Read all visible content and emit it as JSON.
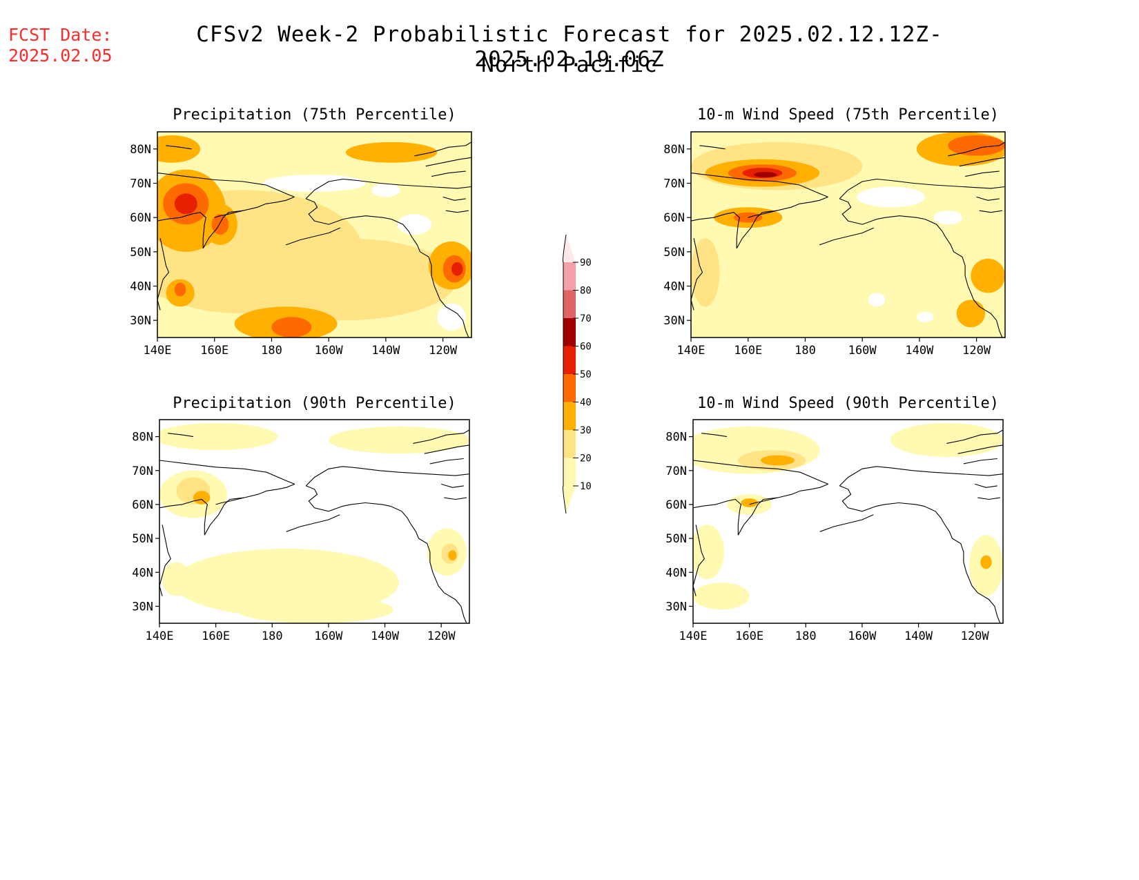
{
  "header": {
    "fcst_label": "FCST Date:",
    "fcst_date": "2025.02.05",
    "title": "CFSv2 Week-2 Probabilistic Forecast for 2025.02.12.12Z-2025.02.19.06Z",
    "region": "North Pacific"
  },
  "colors": {
    "levels": [
      "#ffffff",
      "#fff9b2",
      "#ffe385",
      "#ffb000",
      "#ff6a00",
      "#e62000",
      "#a00000",
      "#e06464",
      "#f4a0a8",
      "#ffe8ea"
    ],
    "coast": "#000000"
  },
  "legend": {
    "ticks": [
      "10",
      "20",
      "30",
      "40",
      "50",
      "60",
      "70",
      "80",
      "90"
    ]
  },
  "map_axes": {
    "lon_ticks": [
      "140E",
      "160E",
      "180",
      "160W",
      "140W",
      "120W"
    ],
    "lat_ticks": [
      "80N",
      "70N",
      "60N",
      "50N",
      "40N",
      "30N"
    ],
    "lon_range": [
      140,
      250
    ],
    "lat_range": [
      25,
      85
    ]
  },
  "panels": [
    {
      "title": "Precipitation (75th Percentile)",
      "blobs": [
        {
          "lon": 170,
          "lat": 50,
          "rx": 42,
          "ry": 18,
          "level": 2
        },
        {
          "lon": 205,
          "lat": 42,
          "rx": 40,
          "ry": 12,
          "level": 2
        },
        {
          "lon": 150,
          "lat": 62,
          "rx": 14,
          "ry": 12,
          "level": 3
        },
        {
          "lon": 150,
          "lat": 64,
          "rx": 8,
          "ry": 6,
          "level": 4
        },
        {
          "lon": 150,
          "lat": 64,
          "rx": 4,
          "ry": 3,
          "level": 5
        },
        {
          "lon": 162,
          "lat": 58,
          "rx": 6,
          "ry": 6,
          "level": 3
        },
        {
          "lon": 162,
          "lat": 58,
          "rx": 3,
          "ry": 3,
          "level": 4
        },
        {
          "lon": 145,
          "lat": 80,
          "rx": 10,
          "ry": 4,
          "level": 3
        },
        {
          "lon": 148,
          "lat": 38,
          "rx": 5,
          "ry": 4,
          "level": 3
        },
        {
          "lon": 148,
          "lat": 39,
          "rx": 2,
          "ry": 2,
          "level": 4
        },
        {
          "lon": 185,
          "lat": 29,
          "rx": 18,
          "ry": 5,
          "level": 3
        },
        {
          "lon": 187,
          "lat": 28,
          "rx": 7,
          "ry": 3,
          "level": 4
        },
        {
          "lon": 243,
          "lat": 46,
          "rx": 8,
          "ry": 7,
          "level": 3
        },
        {
          "lon": 244,
          "lat": 45,
          "rx": 4,
          "ry": 4,
          "level": 4
        },
        {
          "lon": 245,
          "lat": 45,
          "rx": 2,
          "ry": 2,
          "level": 5
        },
        {
          "lon": 222,
          "lat": 79,
          "rx": 16,
          "ry": 3,
          "level": 3
        }
      ],
      "white": [
        {
          "lon": 195,
          "lat": 70,
          "rx": 18,
          "ry": 2.5
        },
        {
          "lon": 230,
          "lat": 58,
          "rx": 6,
          "ry": 3
        },
        {
          "lon": 220,
          "lat": 68,
          "rx": 5,
          "ry": 2
        },
        {
          "lon": 243,
          "lat": 31,
          "rx": 5,
          "ry": 4
        }
      ]
    },
    {
      "title": "10-m Wind Speed (75th Percentile)",
      "blobs": [
        {
          "lon": 185,
          "lat": 48,
          "rx": 45,
          "ry": 22,
          "level": 1
        },
        {
          "lon": 170,
          "lat": 75,
          "rx": 30,
          "ry": 7,
          "level": 2
        },
        {
          "lon": 165,
          "lat": 73,
          "rx": 20,
          "ry": 4,
          "level": 3
        },
        {
          "lon": 165,
          "lat": 73,
          "rx": 12,
          "ry": 2.5,
          "level": 4
        },
        {
          "lon": 165,
          "lat": 73,
          "rx": 7,
          "ry": 1.5,
          "level": 5
        },
        {
          "lon": 166,
          "lat": 72.5,
          "rx": 4,
          "ry": 0.8,
          "level": 6
        },
        {
          "lon": 235,
          "lat": 80,
          "rx": 16,
          "ry": 5,
          "level": 3
        },
        {
          "lon": 240,
          "lat": 81,
          "rx": 10,
          "ry": 3,
          "level": 4
        },
        {
          "lon": 160,
          "lat": 60,
          "rx": 12,
          "ry": 3,
          "level": 3
        },
        {
          "lon": 160,
          "lat": 60,
          "rx": 5,
          "ry": 1.5,
          "level": 4
        },
        {
          "lon": 145,
          "lat": 44,
          "rx": 5,
          "ry": 10,
          "level": 2
        },
        {
          "lon": 244,
          "lat": 43,
          "rx": 6,
          "ry": 5,
          "level": 3
        },
        {
          "lon": 238,
          "lat": 32,
          "rx": 5,
          "ry": 4,
          "level": 3
        }
      ],
      "white": [
        {
          "lon": 210,
          "lat": 66,
          "rx": 12,
          "ry": 3
        },
        {
          "lon": 230,
          "lat": 60,
          "rx": 5,
          "ry": 2
        },
        {
          "lon": 205,
          "lat": 36,
          "rx": 3,
          "ry": 2
        },
        {
          "lon": 222,
          "lat": 31,
          "rx": 3,
          "ry": 1.5
        }
      ]
    },
    {
      "title": "Precipitation (90th Percentile)",
      "blobs": [
        {
          "lon": 160,
          "lat": 80,
          "rx": 22,
          "ry": 4,
          "level": 1
        },
        {
          "lon": 225,
          "lat": 79,
          "rx": 25,
          "ry": 4,
          "level": 1
        },
        {
          "lon": 185,
          "lat": 37,
          "rx": 40,
          "ry": 10,
          "level": 1
        },
        {
          "lon": 195,
          "lat": 29,
          "rx": 28,
          "ry": 4,
          "level": 1
        },
        {
          "lon": 152,
          "lat": 63,
          "rx": 12,
          "ry": 7,
          "level": 1
        },
        {
          "lon": 152,
          "lat": 64,
          "rx": 6,
          "ry": 4,
          "level": 2
        },
        {
          "lon": 155,
          "lat": 62,
          "rx": 3,
          "ry": 2,
          "level": 3
        },
        {
          "lon": 242,
          "lat": 46,
          "rx": 7,
          "ry": 7,
          "level": 1
        },
        {
          "lon": 243,
          "lat": 45.5,
          "rx": 3,
          "ry": 3,
          "level": 2
        },
        {
          "lon": 244,
          "lat": 45,
          "rx": 1.5,
          "ry": 1.5,
          "level": 3
        },
        {
          "lon": 146,
          "lat": 38,
          "rx": 5,
          "ry": 5,
          "level": 1
        }
      ],
      "white": []
    },
    {
      "title": "10-m Wind Speed (90th Percentile)",
      "blobs": [
        {
          "lon": 160,
          "lat": 76,
          "rx": 25,
          "ry": 7,
          "level": 1
        },
        {
          "lon": 168,
          "lat": 73,
          "rx": 12,
          "ry": 3,
          "level": 2
        },
        {
          "lon": 170,
          "lat": 73,
          "rx": 6,
          "ry": 1.5,
          "level": 3
        },
        {
          "lon": 230,
          "lat": 79,
          "rx": 20,
          "ry": 5,
          "level": 1
        },
        {
          "lon": 160,
          "lat": 60,
          "rx": 8,
          "ry": 3,
          "level": 1
        },
        {
          "lon": 160,
          "lat": 60.5,
          "rx": 3,
          "ry": 1.3,
          "level": 3
        },
        {
          "lon": 145,
          "lat": 46,
          "rx": 6,
          "ry": 8,
          "level": 1
        },
        {
          "lon": 244,
          "lat": 42,
          "rx": 6,
          "ry": 9,
          "level": 1
        },
        {
          "lon": 244,
          "lat": 43,
          "rx": 2,
          "ry": 2,
          "level": 3
        },
        {
          "lon": 150,
          "lat": 33,
          "rx": 10,
          "ry": 4,
          "level": 1
        }
      ],
      "white": []
    }
  ]
}
